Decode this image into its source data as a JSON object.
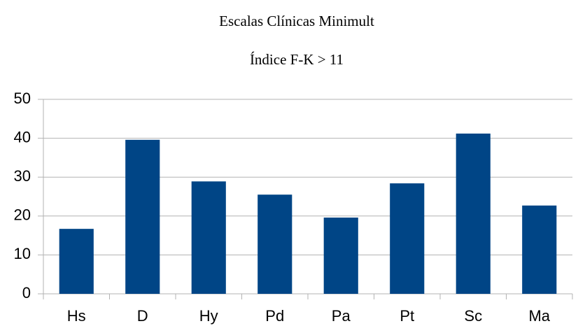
{
  "chart_data": {
    "type": "bar",
    "title": "Escalas Clínicas Minimult",
    "subtitle": "Índice F-K > 11",
    "categories": [
      "Hs",
      "D",
      "Hy",
      "Pd",
      "Pa",
      "Pt",
      "Sc",
      "Ma"
    ],
    "values": [
      16.7,
      39.6,
      28.9,
      25.5,
      19.6,
      28.4,
      41.2,
      22.7
    ],
    "color": "#004586",
    "ylim": [
      0,
      50
    ],
    "yticks": [
      0,
      10,
      20,
      30,
      40,
      50
    ],
    "grid": true
  }
}
